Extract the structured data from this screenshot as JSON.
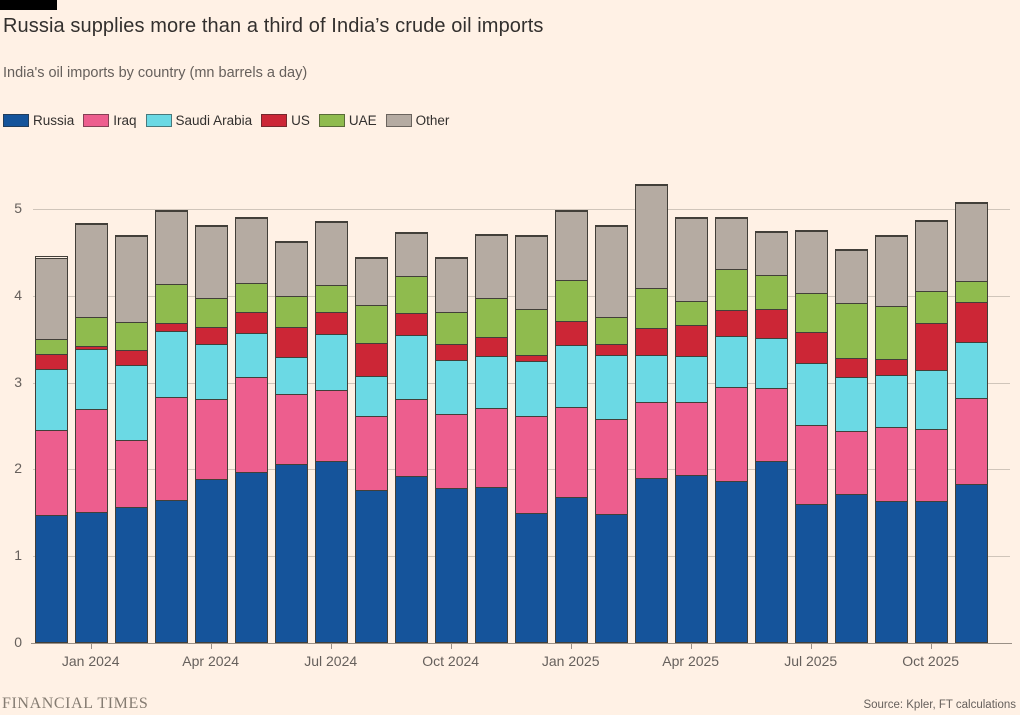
{
  "header": {
    "title": "Russia supplies more than a third of India’s crude oil imports",
    "subtitle": "India's oil imports by country (mn barrels a day)"
  },
  "footer": {
    "brand": "FINANCIAL TIMES",
    "source": "Source: Kpler, FT calculations"
  },
  "colors": {
    "background": "#fff1e5",
    "gridline": "#d0c5ba",
    "axis_text": "#66605c",
    "bar_outline": "#423f39",
    "title_text": "#33302e"
  },
  "chart_data": {
    "type": "bar",
    "stacked": true,
    "title": "Russia supplies more than a third of India’s crude oil imports",
    "subtitle": "India's oil imports by country (mn barrels a day)",
    "ylabel": "",
    "xlabel": "",
    "ylim": [
      0,
      5
    ],
    "grid": true,
    "legend_position": "top",
    "y_ticks": [
      0,
      1,
      2,
      3,
      4,
      5
    ],
    "categories": [
      "Dec 2023",
      "Jan 2024",
      "Feb 2024",
      "Mar 2024",
      "Apr 2024",
      "May 2024",
      "Jun 2024",
      "Jul 2024",
      "Aug 2024",
      "Sep 2024",
      "Oct 2024",
      "Nov 2024",
      "Dec 2024",
      "Jan 2025",
      "Feb 2025",
      "Mar 2025",
      "Apr 2025",
      "May 2025",
      "Jun 2025",
      "Jul 2025",
      "Aug 2025",
      "Sep 2025",
      "Oct 2025",
      "Nov 2025"
    ],
    "x_tick_indices": [
      1,
      4,
      7,
      10,
      13,
      16,
      19,
      22
    ],
    "x_tick_labels": [
      "Jan 2024",
      "Apr 2024",
      "Jul 2024",
      "Oct 2024",
      "Jan 2025",
      "Apr 2025",
      "Jul 2025",
      "Oct 2025"
    ],
    "series": [
      {
        "name": "Russia",
        "color": "#15549b",
        "values": [
          1.46,
          1.5,
          1.55,
          1.64,
          1.88,
          1.96,
          2.05,
          2.08,
          1.75,
          1.91,
          1.77,
          1.79,
          1.49,
          1.67,
          1.48,
          1.89,
          1.92,
          1.85,
          2.09,
          1.59,
          1.7,
          1.62,
          1.63,
          1.82
        ]
      },
      {
        "name": "Iraq",
        "color": "#ed5e8e",
        "values": [
          0.98,
          1.18,
          0.78,
          1.18,
          0.92,
          1.09,
          0.81,
          0.82,
          0.85,
          0.89,
          0.86,
          0.91,
          1.11,
          1.04,
          1.09,
          0.88,
          0.84,
          1.09,
          0.84,
          0.91,
          0.73,
          0.86,
          0.82,
          0.99
        ]
      },
      {
        "name": "Saudi Arabia",
        "color": "#6bd9e4",
        "values": [
          0.71,
          0.7,
          0.86,
          0.76,
          0.63,
          0.51,
          0.42,
          0.65,
          0.47,
          0.74,
          0.62,
          0.59,
          0.64,
          0.71,
          0.74,
          0.54,
          0.54,
          0.58,
          0.57,
          0.71,
          0.62,
          0.6,
          0.68,
          0.65
        ]
      },
      {
        "name": "US",
        "color": "#cc2636",
        "values": [
          0.17,
          0.03,
          0.18,
          0.1,
          0.2,
          0.24,
          0.35,
          0.25,
          0.37,
          0.25,
          0.18,
          0.23,
          0.07,
          0.28,
          0.12,
          0.31,
          0.35,
          0.31,
          0.34,
          0.36,
          0.22,
          0.18,
          0.55,
          0.46
        ]
      },
      {
        "name": "UAE",
        "color": "#8fbb4e",
        "values": [
          0.17,
          0.33,
          0.32,
          0.45,
          0.33,
          0.34,
          0.36,
          0.31,
          0.44,
          0.43,
          0.37,
          0.44,
          0.53,
          0.47,
          0.32,
          0.46,
          0.28,
          0.47,
          0.39,
          0.45,
          0.64,
          0.61,
          0.36,
          0.24
        ]
      },
      {
        "name": "Other",
        "color": "#b5aba2",
        "values": [
          0.94,
          1.08,
          0.99,
          0.84,
          0.83,
          0.74,
          0.62,
          0.73,
          0.54,
          0.49,
          0.62,
          0.73,
          0.84,
          0.8,
          1.04,
          1.18,
          0.95,
          0.58,
          0.49,
          0.72,
          0.61,
          0.81,
          0.81,
          0.9
        ]
      }
    ]
  }
}
